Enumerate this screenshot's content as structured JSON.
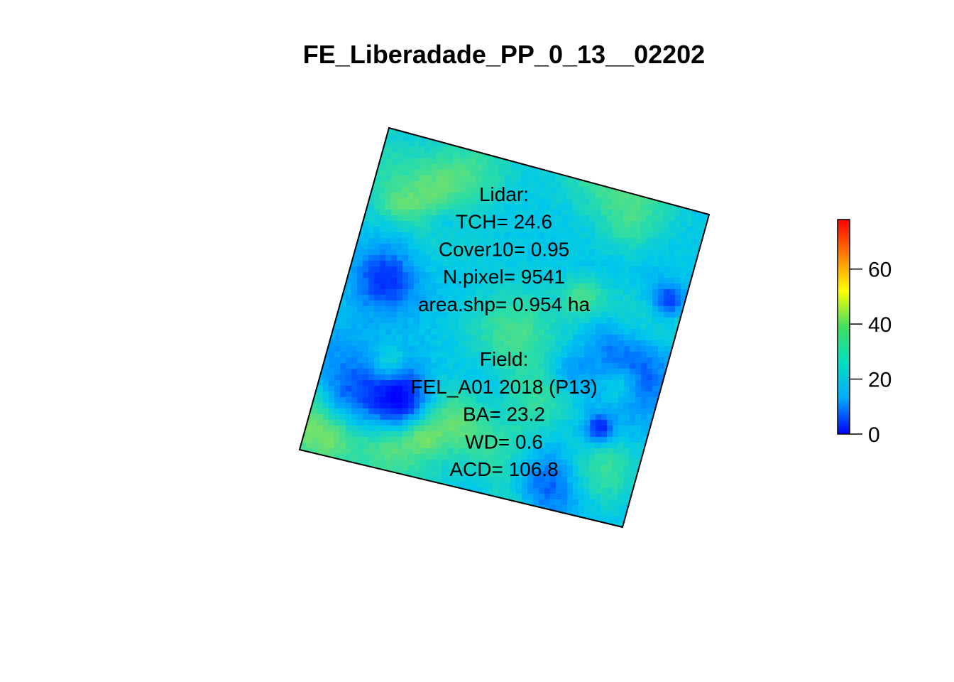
{
  "title": "FE_Liberadade_PP_0_13__02202",
  "annotation": {
    "lidar_lines": [
      "Lidar:",
      "TCH= 24.6",
      "Cover10= 0.95",
      "N.pixel= 9541",
      "area.shp= 0.954 ha"
    ],
    "field_lines": [
      "Field:",
      "FEL_A01 2018 (P13)",
      "BA= 23.2",
      "WD= 0.6",
      "ACD= 106.8"
    ]
  },
  "legend": {
    "min": 0,
    "max": 78,
    "ticks": [
      0,
      20,
      40,
      60
    ],
    "tick_labels": [
      "0",
      "20",
      "40",
      "60"
    ],
    "palette": [
      "#0000ff",
      "#00aaff",
      "#00e0c0",
      "#40e060",
      "#ffff00",
      "#ff8000",
      "#ff0000"
    ]
  },
  "colors": {
    "frame": "#000000",
    "background": "#ffffff"
  }
}
